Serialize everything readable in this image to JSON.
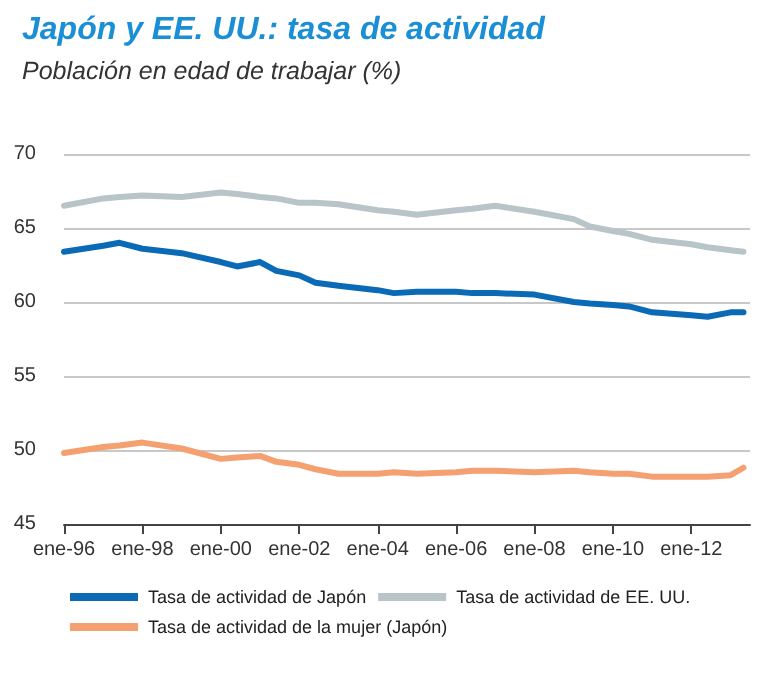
{
  "chart_data": {
    "type": "line",
    "title": "Japón y EE. UU.: tasa de actividad",
    "subtitle": "Población en edad de trabajar (%)",
    "x": [
      "1996-01",
      "1997-01",
      "1997-06",
      "1998-01",
      "1999-01",
      "2000-01",
      "2000-06",
      "2001-01",
      "2001-06",
      "2002-01",
      "2002-06",
      "2003-01",
      "2004-01",
      "2004-06",
      "2005-01",
      "2006-01",
      "2006-06",
      "2007-01",
      "2008-01",
      "2009-01",
      "2009-06",
      "2010-01",
      "2010-06",
      "2011-01",
      "2012-01",
      "2012-06",
      "2013-01",
      "2013-05"
    ],
    "series": [
      {
        "name": "Tasa de actividad de Japón",
        "color": "#0a6ab5",
        "values": [
          63.4,
          63.8,
          64.0,
          63.6,
          63.3,
          62.7,
          62.4,
          62.7,
          62.1,
          61.8,
          61.3,
          61.1,
          60.8,
          60.6,
          60.7,
          60.7,
          60.6,
          60.6,
          60.5,
          60.0,
          59.9,
          59.8,
          59.7,
          59.3,
          59.1,
          59.0,
          59.3,
          59.3
        ]
      },
      {
        "name": "Tasa de actividad de EE. UU.",
        "color": "#b8c4c8",
        "values": [
          66.5,
          67.0,
          67.1,
          67.2,
          67.1,
          67.4,
          67.3,
          67.1,
          67.0,
          66.7,
          66.7,
          66.6,
          66.2,
          66.1,
          65.9,
          66.2,
          66.3,
          66.5,
          66.1,
          65.6,
          65.1,
          64.8,
          64.6,
          64.2,
          63.9,
          63.7,
          63.5,
          63.4
        ]
      },
      {
        "name": "Tasa de actividad de la mujer (Japón)",
        "color": "#f5a071",
        "values": [
          49.8,
          50.2,
          50.3,
          50.5,
          50.1,
          49.4,
          49.5,
          49.6,
          49.2,
          49.0,
          48.7,
          48.4,
          48.4,
          48.5,
          48.4,
          48.5,
          48.6,
          48.6,
          48.5,
          48.6,
          48.5,
          48.4,
          48.4,
          48.2,
          48.2,
          48.2,
          48.3,
          48.8
        ]
      }
    ],
    "xlim": [
      "1996-01",
      "2013-07"
    ],
    "xticks": [
      {
        "value": "1996-01",
        "label": "ene-96"
      },
      {
        "value": "1998-01",
        "label": "ene-98"
      },
      {
        "value": "2000-01",
        "label": "ene-00"
      },
      {
        "value": "2002-01",
        "label": "ene-02"
      },
      {
        "value": "2004-01",
        "label": "ene-04"
      },
      {
        "value": "2006-01",
        "label": "ene-06"
      },
      {
        "value": "2008-01",
        "label": "ene-08"
      },
      {
        "value": "2010-01",
        "label": "ene-10"
      },
      {
        "value": "2012-01",
        "label": "ene-12"
      }
    ],
    "ylim": [
      45,
      70
    ],
    "yticks": [
      45,
      50,
      55,
      60,
      65,
      70
    ],
    "grid": "y",
    "legend": "bottom",
    "marker": "none",
    "line_style": "solid"
  }
}
